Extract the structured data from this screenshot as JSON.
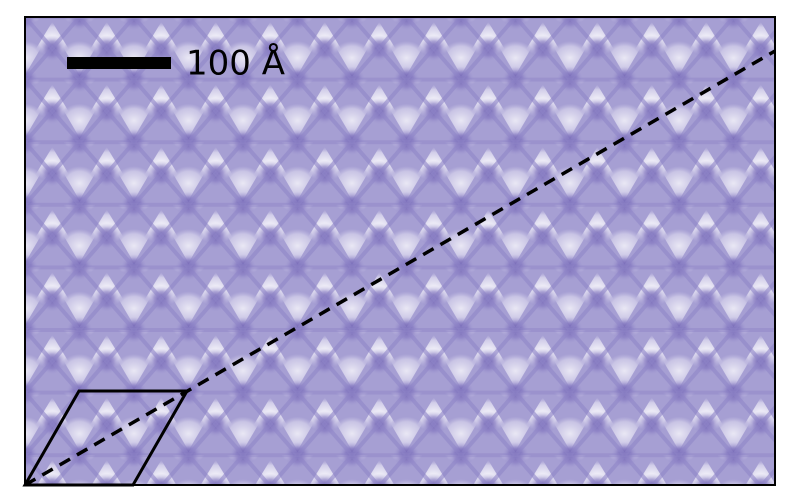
{
  "scale_bar": {
    "label": "100 Å"
  }
}
